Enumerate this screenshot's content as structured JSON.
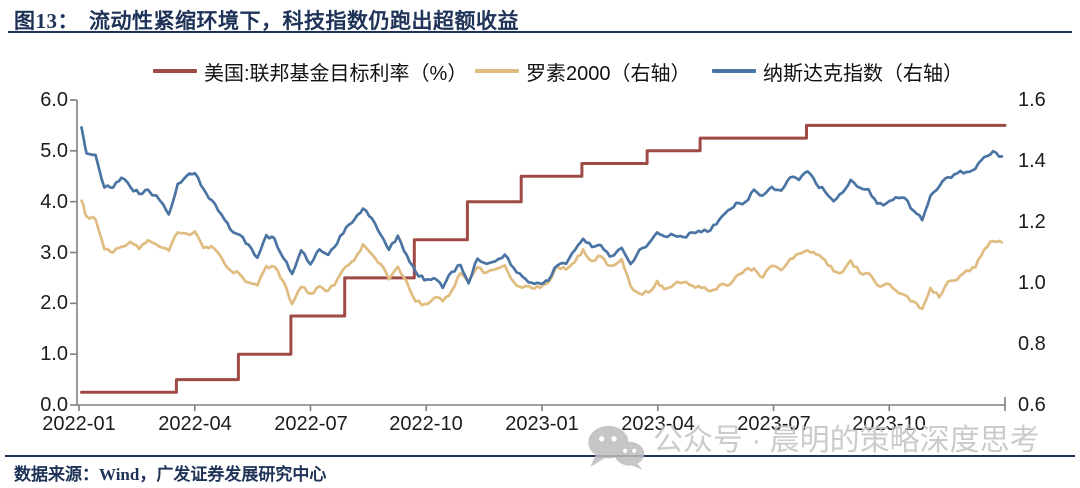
{
  "header": {
    "figure_label": "图13：",
    "title": "流动性紧缩环境下，科技指数仍跑出超额收益"
  },
  "footer": {
    "source": "数据来源：Wind，广发证券发展研究中心"
  },
  "watermark": {
    "icon": "wechat-icon",
    "text": "公众号 · 晨明的策略深度思考"
  },
  "colors": {
    "navy": "#1e3357",
    "axis": "#7f7f7f",
    "tick_text": "#1c1c1c",
    "watermark_gray": "#c3c3c3",
    "fed_red": "#9e4b45",
    "russell_tan": "#e0bc80",
    "nasdaq_blue": "#4a74a3"
  },
  "chart_data": {
    "type": "line",
    "title": "流动性紧缩环境下，科技指数仍跑出超额收益",
    "grid": false,
    "legend_position": "top",
    "x_tick_labels": [
      "2022-01",
      "2022-04",
      "2022-07",
      "2022-10",
      "2023-01",
      "2023-04",
      "2023-07",
      "2023-10"
    ],
    "x_start": "2022-01-01",
    "x_end": "2024-01-01",
    "left_axis": {
      "range": [
        0,
        6
      ],
      "ticks": [
        "0.0",
        "1.0",
        "2.0",
        "3.0",
        "4.0",
        "5.0",
        "6.0"
      ]
    },
    "right_axis": {
      "range": [
        0.6,
        1.6
      ],
      "ticks": [
        "0.6",
        "0.8",
        "1.0",
        "1.2",
        "1.4",
        "1.6"
      ]
    },
    "x_dates": [
      "2022-01-03",
      "2022-01-07",
      "2022-01-14",
      "2022-01-21",
      "2022-01-28",
      "2022-02-04",
      "2022-02-11",
      "2022-02-18",
      "2022-02-25",
      "2022-03-04",
      "2022-03-11",
      "2022-03-18",
      "2022-03-25",
      "2022-04-01",
      "2022-04-08",
      "2022-04-14",
      "2022-04-22",
      "2022-04-29",
      "2022-05-06",
      "2022-05-13",
      "2022-05-20",
      "2022-05-27",
      "2022-06-03",
      "2022-06-10",
      "2022-06-17",
      "2022-06-24",
      "2022-07-01",
      "2022-07-08",
      "2022-07-15",
      "2022-07-22",
      "2022-07-29",
      "2022-08-05",
      "2022-08-12",
      "2022-08-19",
      "2022-08-26",
      "2022-09-02",
      "2022-09-09",
      "2022-09-16",
      "2022-09-23",
      "2022-09-30",
      "2022-10-07",
      "2022-10-14",
      "2022-10-21",
      "2022-10-28",
      "2022-11-04",
      "2022-11-11",
      "2022-11-18",
      "2022-11-25",
      "2022-12-02",
      "2022-12-09",
      "2022-12-16",
      "2022-12-23",
      "2022-12-30",
      "2023-01-06",
      "2023-01-13",
      "2023-01-20",
      "2023-01-27",
      "2023-02-03",
      "2023-02-10",
      "2023-02-17",
      "2023-02-24",
      "2023-03-03",
      "2023-03-10",
      "2023-03-17",
      "2023-03-24",
      "2023-03-31",
      "2023-04-06",
      "2023-04-14",
      "2023-04-21",
      "2023-04-28",
      "2023-05-05",
      "2023-05-12",
      "2023-05-19",
      "2023-05-26",
      "2023-06-02",
      "2023-06-09",
      "2023-06-16",
      "2023-06-23",
      "2023-06-30",
      "2023-07-07",
      "2023-07-14",
      "2023-07-21",
      "2023-07-28",
      "2023-08-04",
      "2023-08-11",
      "2023-08-18",
      "2023-08-25",
      "2023-09-01",
      "2023-09-08",
      "2023-09-15",
      "2023-09-22",
      "2023-09-29",
      "2023-10-06",
      "2023-10-13",
      "2023-10-20",
      "2023-10-27",
      "2023-11-03",
      "2023-11-10",
      "2023-11-17",
      "2023-11-24",
      "2023-12-01",
      "2023-12-08",
      "2023-12-15",
      "2023-12-22",
      "2023-12-29"
    ],
    "series": [
      {
        "name": "美国:联邦基金目标利率（%）",
        "axis": "left",
        "style": "step",
        "color": "#9e4b45",
        "x": [
          "2022-01-03",
          "2022-03-17",
          "2022-05-05",
          "2022-06-16",
          "2022-07-28",
          "2022-09-22",
          "2022-11-03",
          "2022-12-15",
          "2023-02-02",
          "2023-03-23",
          "2023-05-04",
          "2023-07-27",
          "2024-01-01"
        ],
        "y": [
          0.25,
          0.5,
          1.0,
          1.75,
          2.5,
          3.25,
          4.0,
          4.5,
          4.75,
          5.0,
          5.25,
          5.5,
          5.5
        ]
      },
      {
        "name": "罗素2000（右轴）",
        "axis": "right",
        "style": "line",
        "color": "#e0bc80",
        "y": [
          1.27,
          1.218,
          1.209,
          1.111,
          1.1,
          1.119,
          1.135,
          1.111,
          1.14,
          1.118,
          1.106,
          1.166,
          1.162,
          1.169,
          1.115,
          1.121,
          1.084,
          1.042,
          1.029,
          1.002,
          0.992,
          1.055,
          1.053,
          1.006,
          0.931,
          0.987,
          0.965,
          0.989,
          0.975,
          1.01,
          1.054,
          1.074,
          1.127,
          1.094,
          1.062,
          1.012,
          1.053,
          1.005,
          0.939,
          0.931,
          0.951,
          0.94,
          0.974,
          1.032,
          1.006,
          1.052,
          1.034,
          1.045,
          1.058,
          1.004,
          0.985,
          0.984,
          0.984,
          1.002,
          1.055,
          1.044,
          1.069,
          1.11,
          1.072,
          1.088,
          1.056,
          1.078,
          0.99,
          0.965,
          0.969,
          1.007,
          0.98,
          0.996,
          1.002,
          0.992,
          0.984,
          0.973,
          0.992,
          0.991,
          1.023,
          1.043,
          1.048,
          1.018,
          1.056,
          1.042,
          1.079,
          1.096,
          1.107,
          1.094,
          1.076,
          1.039,
          1.036,
          1.074,
          1.035,
          1.032,
          0.993,
          0.998,
          0.976,
          0.961,
          0.94,
          0.915,
          0.984,
          0.953,
          1.005,
          1.01,
          1.041,
          1.051,
          1.11,
          1.137,
          1.133
        ]
      },
      {
        "name": "纳斯达克指数（右轴）",
        "axis": "right",
        "style": "line",
        "color": "#4a74a3",
        "y": [
          1.51,
          1.425,
          1.42,
          1.313,
          1.313,
          1.345,
          1.315,
          1.292,
          1.306,
          1.27,
          1.225,
          1.325,
          1.351,
          1.36,
          1.308,
          1.273,
          1.225,
          1.176,
          1.158,
          1.126,
          1.083,
          1.157,
          1.146,
          1.082,
          1.03,
          1.107,
          1.061,
          1.11,
          1.092,
          1.129,
          1.182,
          1.207,
          1.244,
          1.212,
          1.158,
          1.109,
          1.155,
          1.092,
          1.037,
          1.009,
          1.016,
          0.984,
          1.036,
          1.059,
          0.999,
          1.08,
          1.063,
          1.071,
          1.093,
          1.05,
          1.021,
          1.001,
          0.998,
          1.008,
          1.057,
          1.063,
          1.108,
          1.145,
          1.118,
          1.124,
          1.087,
          1.115,
          1.062,
          1.109,
          1.128,
          1.166,
          1.153,
          1.156,
          1.151,
          1.166,
          1.167,
          1.172,
          1.207,
          1.238,
          1.263,
          1.265,
          1.306,
          1.287,
          1.315,
          1.303,
          1.346,
          1.338,
          1.366,
          1.327,
          1.301,
          1.268,
          1.296,
          1.338,
          1.313,
          1.308,
          1.26,
          1.261,
          1.281,
          1.279,
          1.238,
          1.206,
          1.286,
          1.316,
          1.347,
          1.359,
          1.364,
          1.374,
          1.413,
          1.432,
          1.415
        ]
      }
    ]
  }
}
